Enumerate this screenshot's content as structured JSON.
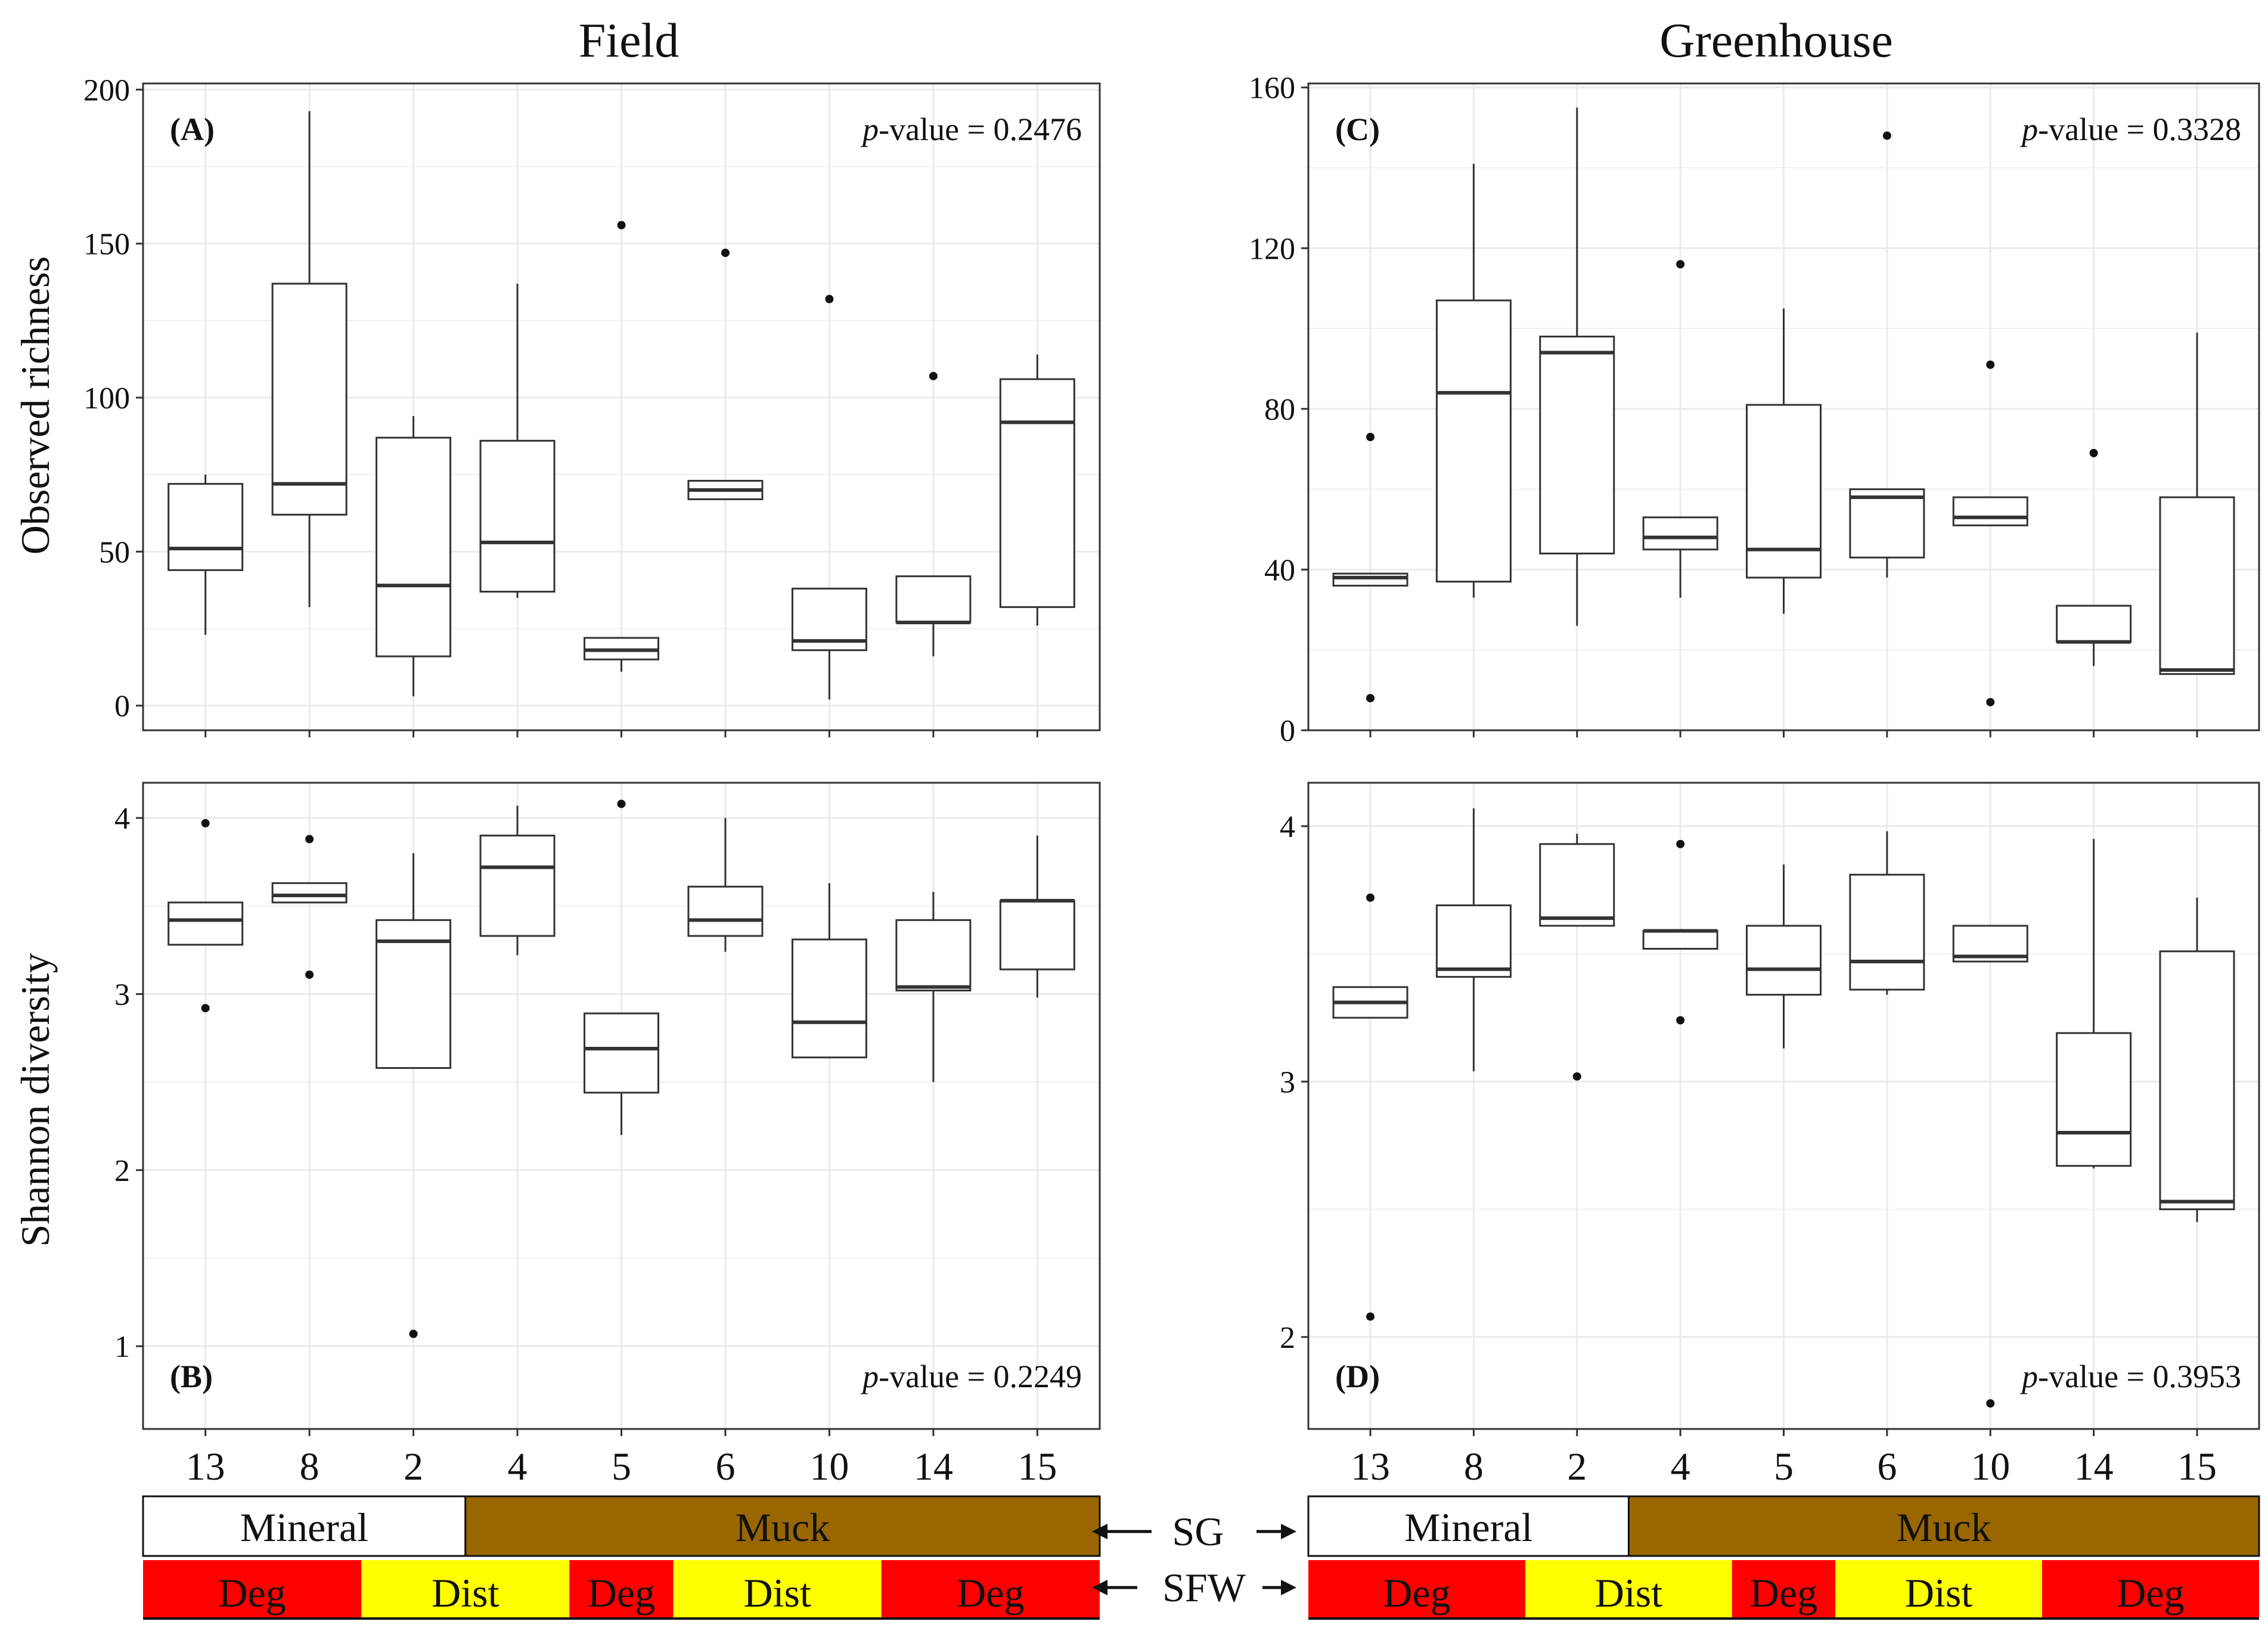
{
  "figure": {
    "column_titles": [
      "Field",
      "Greenhouse"
    ],
    "categories": [
      "13",
      "8",
      "2",
      "4",
      "5",
      "6",
      "10",
      "14",
      "15"
    ],
    "sg_label": "SG",
    "sfw_label": "SFW",
    "sg_bar": {
      "mineral_label": "Mineral",
      "muck_label": "Muck",
      "mineral_count": 3,
      "mineral_color": "#ffffff",
      "muck_color": "#996600"
    },
    "sfw_bar": {
      "segments": [
        {
          "label": "Deg",
          "count": 2,
          "color": "#ff0000"
        },
        {
          "label": "Dist",
          "count": 2,
          "color": "#ffff00"
        },
        {
          "label": "Deg",
          "count": 1,
          "color": "#ff0000"
        },
        {
          "label": "Dist",
          "count": 2,
          "color": "#ffff00"
        },
        {
          "label": "Deg",
          "count": 2,
          "color": "#ff0000"
        }
      ]
    },
    "colors": {
      "grid": "#ebebeb",
      "box": "#333333",
      "axis": "#333333",
      "text": "#111111"
    }
  },
  "chart_data": [
    {
      "type": "box",
      "panel": "(A)",
      "column": "Field",
      "ylabel": "Observed richness",
      "pvalue_prefix": "p",
      "pvalue_text": "-value = 0.2476",
      "ylim": [
        -8,
        202
      ],
      "yticks": [
        "0",
        "50",
        "100",
        "150",
        "200"
      ],
      "categories": [
        "13",
        "8",
        "2",
        "4",
        "5",
        "6",
        "10",
        "14",
        "15"
      ],
      "boxes": [
        {
          "lo": 23,
          "q1": 44,
          "med": 51,
          "q3": 72,
          "hi": 75,
          "outliers": []
        },
        {
          "lo": 32,
          "q1": 62,
          "med": 72,
          "q3": 137,
          "hi": 193,
          "outliers": []
        },
        {
          "lo": 3,
          "q1": 16,
          "med": 39,
          "q3": 87,
          "hi": 94,
          "outliers": []
        },
        {
          "lo": 35,
          "q1": 37,
          "med": 53,
          "q3": 86,
          "hi": 137,
          "outliers": []
        },
        {
          "lo": 11,
          "q1": 15,
          "med": 18,
          "q3": 22,
          "hi": 22,
          "outliers": [
            156
          ]
        },
        {
          "lo": 67,
          "q1": 67,
          "med": 70,
          "q3": 73,
          "hi": 73,
          "outliers": [
            147
          ]
        },
        {
          "lo": 2,
          "q1": 18,
          "med": 21,
          "q3": 38,
          "hi": 38,
          "outliers": [
            132
          ]
        },
        {
          "lo": 16,
          "q1": 27,
          "med": 27,
          "q3": 42,
          "hi": 42,
          "outliers": [
            107
          ]
        },
        {
          "lo": 26,
          "q1": 32,
          "med": 92,
          "q3": 106,
          "hi": 114,
          "outliers": []
        }
      ]
    },
    {
      "type": "box",
      "panel": "(B)",
      "column": "Field",
      "ylabel": "Shannon diversity",
      "pvalue_prefix": "p",
      "pvalue_text": "-value = 0.2249",
      "ylim": [
        0.53,
        4.2
      ],
      "yticks": [
        "1",
        "2",
        "3",
        "4"
      ],
      "categories": [
        "13",
        "8",
        "2",
        "4",
        "5",
        "6",
        "10",
        "14",
        "15"
      ],
      "boxes": [
        {
          "lo": 3.28,
          "q1": 3.28,
          "med": 3.42,
          "q3": 3.52,
          "hi": 3.52,
          "outliers": [
            3.97,
            2.92
          ]
        },
        {
          "lo": 3.52,
          "q1": 3.52,
          "med": 3.56,
          "q3": 3.63,
          "hi": 3.63,
          "outliers": [
            3.88,
            3.11
          ]
        },
        {
          "lo": 2.58,
          "q1": 2.58,
          "med": 3.3,
          "q3": 3.42,
          "hi": 3.8,
          "outliers": [
            1.07
          ]
        },
        {
          "lo": 3.22,
          "q1": 3.33,
          "med": 3.72,
          "q3": 3.9,
          "hi": 4.07,
          "outliers": []
        },
        {
          "lo": 2.2,
          "q1": 2.44,
          "med": 2.69,
          "q3": 2.89,
          "hi": 2.89,
          "outliers": [
            4.08
          ]
        },
        {
          "lo": 3.24,
          "q1": 3.33,
          "med": 3.42,
          "q3": 3.61,
          "hi": 4.0,
          "outliers": []
        },
        {
          "lo": 2.64,
          "q1": 2.64,
          "med": 2.84,
          "q3": 3.31,
          "hi": 3.63,
          "outliers": []
        },
        {
          "lo": 2.5,
          "q1": 3.02,
          "med": 3.04,
          "q3": 3.42,
          "hi": 3.58,
          "outliers": []
        },
        {
          "lo": 2.98,
          "q1": 3.14,
          "med": 3.53,
          "q3": 3.53,
          "hi": 3.9,
          "outliers": []
        }
      ]
    },
    {
      "type": "box",
      "panel": "(C)",
      "column": "Greenhouse",
      "ylabel": "",
      "pvalue_prefix": "p",
      "pvalue_text": "-value = 0.3328",
      "ylim": [
        0,
        161
      ],
      "yticks": [
        "0",
        "40",
        "80",
        "120",
        "160"
      ],
      "categories": [
        "13",
        "8",
        "2",
        "4",
        "5",
        "6",
        "10",
        "14",
        "15"
      ],
      "boxes": [
        {
          "lo": 36,
          "q1": 36,
          "med": 38,
          "q3": 39,
          "hi": 39,
          "outliers": [
            73,
            8
          ]
        },
        {
          "lo": 33,
          "q1": 37,
          "med": 84,
          "q3": 107,
          "hi": 141,
          "outliers": []
        },
        {
          "lo": 26,
          "q1": 44,
          "med": 94,
          "q3": 98,
          "hi": 155,
          "outliers": []
        },
        {
          "lo": 33,
          "q1": 45,
          "med": 48,
          "q3": 53,
          "hi": 53,
          "outliers": [
            116
          ]
        },
        {
          "lo": 29,
          "q1": 38,
          "med": 45,
          "q3": 81,
          "hi": 105,
          "outliers": []
        },
        {
          "lo": 38,
          "q1": 43,
          "med": 58,
          "q3": 60,
          "hi": 60,
          "outliers": [
            148
          ]
        },
        {
          "lo": 51,
          "q1": 51,
          "med": 53,
          "q3": 58,
          "hi": 58,
          "outliers": [
            91,
            7
          ]
        },
        {
          "lo": 16,
          "q1": 22,
          "med": 22,
          "q3": 31,
          "hi": 31,
          "outliers": [
            69
          ]
        },
        {
          "lo": 14,
          "q1": 14,
          "med": 15,
          "q3": 58,
          "hi": 99,
          "outliers": []
        }
      ]
    },
    {
      "type": "box",
      "panel": "(D)",
      "column": "Greenhouse",
      "ylabel": "",
      "pvalue_prefix": "p",
      "pvalue_text": "-value = 0.3953",
      "ylim": [
        1.64,
        4.17
      ],
      "yticks": [
        "2",
        "3",
        "4"
      ],
      "categories": [
        "13",
        "8",
        "2",
        "4",
        "5",
        "6",
        "10",
        "14",
        "15"
      ],
      "boxes": [
        {
          "lo": 3.25,
          "q1": 3.25,
          "med": 3.31,
          "q3": 3.37,
          "hi": 3.37,
          "outliers": [
            3.72,
            2.08
          ]
        },
        {
          "lo": 3.04,
          "q1": 3.41,
          "med": 3.44,
          "q3": 3.69,
          "hi": 4.07,
          "outliers": []
        },
        {
          "lo": 3.61,
          "q1": 3.61,
          "med": 3.64,
          "q3": 3.93,
          "hi": 3.97,
          "outliers": [
            3.02
          ]
        },
        {
          "lo": 3.52,
          "q1": 3.52,
          "med": 3.59,
          "q3": 3.59,
          "hi": 3.59,
          "outliers": [
            3.93,
            3.24
          ]
        },
        {
          "lo": 3.13,
          "q1": 3.34,
          "med": 3.44,
          "q3": 3.61,
          "hi": 3.85,
          "outliers": []
        },
        {
          "lo": 3.34,
          "q1": 3.36,
          "med": 3.47,
          "q3": 3.81,
          "hi": 3.98,
          "outliers": []
        },
        {
          "lo": 3.47,
          "q1": 3.47,
          "med": 3.49,
          "q3": 3.61,
          "hi": 3.61,
          "outliers": [
            1.74
          ]
        },
        {
          "lo": 2.66,
          "q1": 2.67,
          "med": 2.8,
          "q3": 3.19,
          "hi": 3.95,
          "outliers": []
        },
        {
          "lo": 2.45,
          "q1": 2.5,
          "med": 2.53,
          "q3": 3.51,
          "hi": 3.72,
          "outliers": []
        }
      ]
    }
  ]
}
